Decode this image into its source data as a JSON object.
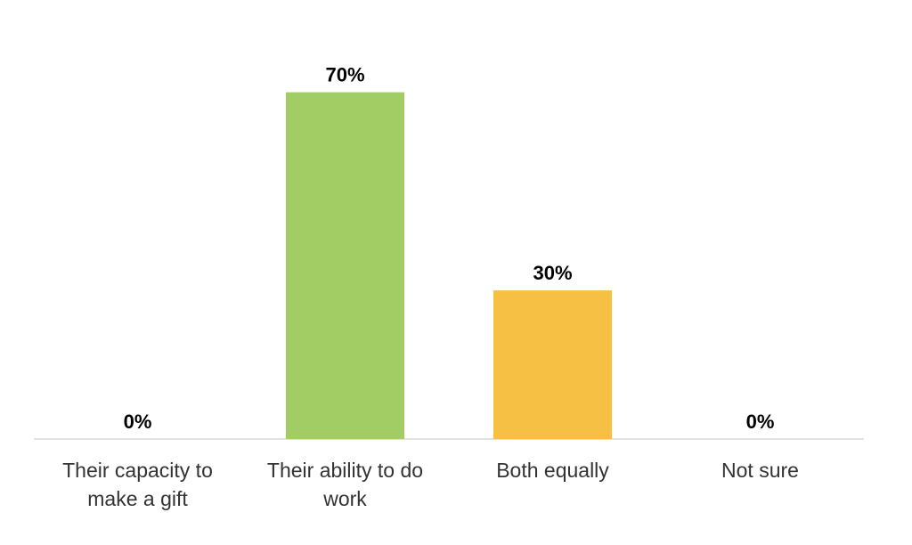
{
  "chart_data": {
    "type": "bar",
    "categories": [
      [
        "Their capacity to",
        "make a gift"
      ],
      [
        "Their ability to do",
        "work"
      ],
      [
        "Both equally"
      ],
      [
        "Not sure"
      ]
    ],
    "values": [
      0,
      70,
      30,
      0
    ],
    "value_labels": [
      "0%",
      "70%",
      "30%",
      "0%"
    ],
    "colors": [
      "#a2cd64",
      "#a2cd64",
      "#f5c044",
      "#a2cd64"
    ],
    "ylim": [
      0,
      80
    ],
    "grid": false,
    "legend": "none",
    "title": "",
    "xlabel": "",
    "ylabel": ""
  }
}
